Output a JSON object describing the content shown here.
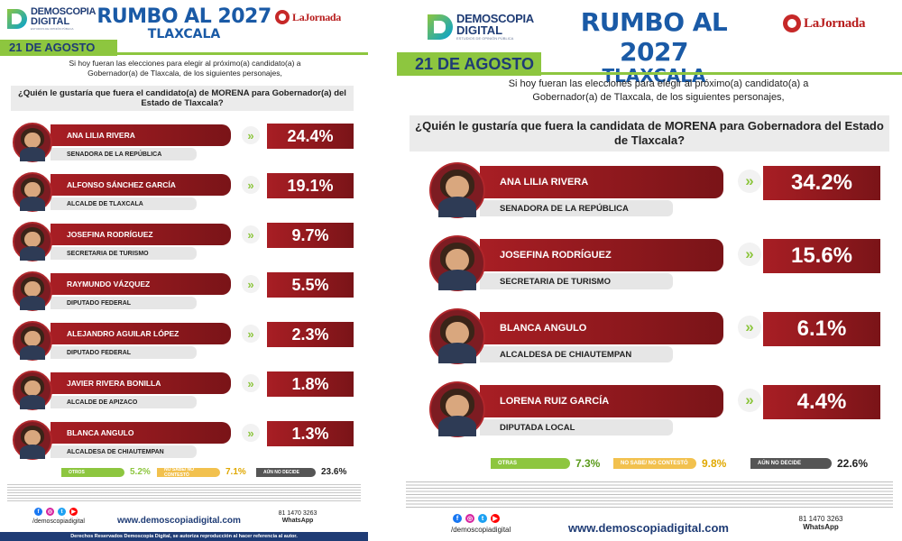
{
  "left": {
    "brand": {
      "line1": "DEMOSCOPIA",
      "line2": "DIGITAL",
      "tagline": "ESTUDIOS DE OPINIÓN PÚBLICA"
    },
    "title": "RUMBO AL 2027",
    "subtitle": "TLAXCALA",
    "partner": "LaJornada",
    "date": "21 DE AGOSTO",
    "intro": "Si hoy fueran las elecciones para elegir al próximo(a) candidato(a) a Gobernador(a) de Tlaxcala, de los siguientes personajes,",
    "question": "¿Quién le gustaría que fuera el candidato(a) de MORENA para Gobernador(a) del Estado de Tlaxcala?",
    "candidates": [
      {
        "name": "ANA LILIA RIVERA",
        "role": "SENADORA DE LA REPÚBLICA",
        "pct": "24.4%"
      },
      {
        "name": "ALFONSO SÁNCHEZ GARCÍA",
        "role": "ALCALDE DE TLAXCALA",
        "pct": "19.1%"
      },
      {
        "name": "JOSEFINA RODRÍGUEZ",
        "role": "SECRETARIA DE TURISMO",
        "pct": "9.7%"
      },
      {
        "name": "RAYMUNDO VÁZQUEZ",
        "role": "DIPUTADO FEDERAL",
        "pct": "5.5%"
      },
      {
        "name": "ALEJANDRO AGUILAR LÓPEZ",
        "role": "DIPUTADO FEDERAL",
        "pct": "2.3%"
      },
      {
        "name": "JAVIER RIVERA BONILLA",
        "role": "ALCALDE DE APIZACO",
        "pct": "1.8%"
      },
      {
        "name": "BLANCA ANGULO",
        "role": "ALCALDESA DE CHIAUTEMPAN",
        "pct": "1.3%"
      }
    ],
    "legend": [
      {
        "label": "OTROS",
        "value": "5.2%",
        "color": "#8dc63f",
        "vcolor": "#8dc63f"
      },
      {
        "label": "NO SABE/ NO CONTESTÓ",
        "value": "7.1%",
        "color": "#f2c14e",
        "vcolor": "#e0a800"
      },
      {
        "label": "AÚN NO DECIDE",
        "value": "23.6%",
        "color": "#555555",
        "vcolor": "#222222"
      }
    ],
    "web": "www.demoscopiadigital.com",
    "social_handle": "/demoscopiadigital",
    "whatsapp_number": "81 1470 3263",
    "whatsapp_label": "WhatsApp",
    "rights": "Derechos Reservados Demoscopia Digital, se autoriza reproducción al hacer referencia al autor."
  },
  "right": {
    "brand": {
      "line1": "DEMOSCOPIA",
      "line2": "DIGITAL",
      "tagline": "ESTUDIOS DE OPINIÓN PÚBLICA"
    },
    "title": "RUMBO AL 2027",
    "subtitle": "TLAXCALA",
    "partner": "LaJornada",
    "date": "21 DE AGOSTO",
    "intro": "Si hoy fueran las elecciones para elegir al próximo(a) candidato(a) a Gobernador(a) de Tlaxcala, de los siguientes personajes,",
    "question": "¿Quién le gustaría que fuera la candidata de MORENA para Gobernadora del Estado de Tlaxcala?",
    "candidates": [
      {
        "name": "ANA LILIA RIVERA",
        "role": "SENADORA DE LA REPÚBLICA",
        "pct": "34.2%"
      },
      {
        "name": "JOSEFINA RODRÍGUEZ",
        "role": "SECRETARIA DE TURISMO",
        "pct": "15.6%"
      },
      {
        "name": "BLANCA ANGULO",
        "role": "ALCALDESA DE CHIAUTEMPAN",
        "pct": "6.1%"
      },
      {
        "name": "LORENA RUIZ GARCÍA",
        "role": "DIPUTADA LOCAL",
        "pct": "4.4%"
      }
    ],
    "legend": [
      {
        "label": "OTRAS",
        "value": "7.3%",
        "color": "#8dc63f",
        "vcolor": "#5a9a1a"
      },
      {
        "label": "NO SABE/ NO CONTESTÓ",
        "value": "9.8%",
        "color": "#f2c14e",
        "vcolor": "#e0a800"
      },
      {
        "label": "AÚN NO DECIDE",
        "value": "22.6%",
        "color": "#555555",
        "vcolor": "#222222"
      }
    ],
    "web": "www.demoscopiadigital.com",
    "social_handle": "/demoscopiadigital",
    "whatsapp_number": "81 1470 3263",
    "whatsapp_label": "WhatsApp"
  }
}
